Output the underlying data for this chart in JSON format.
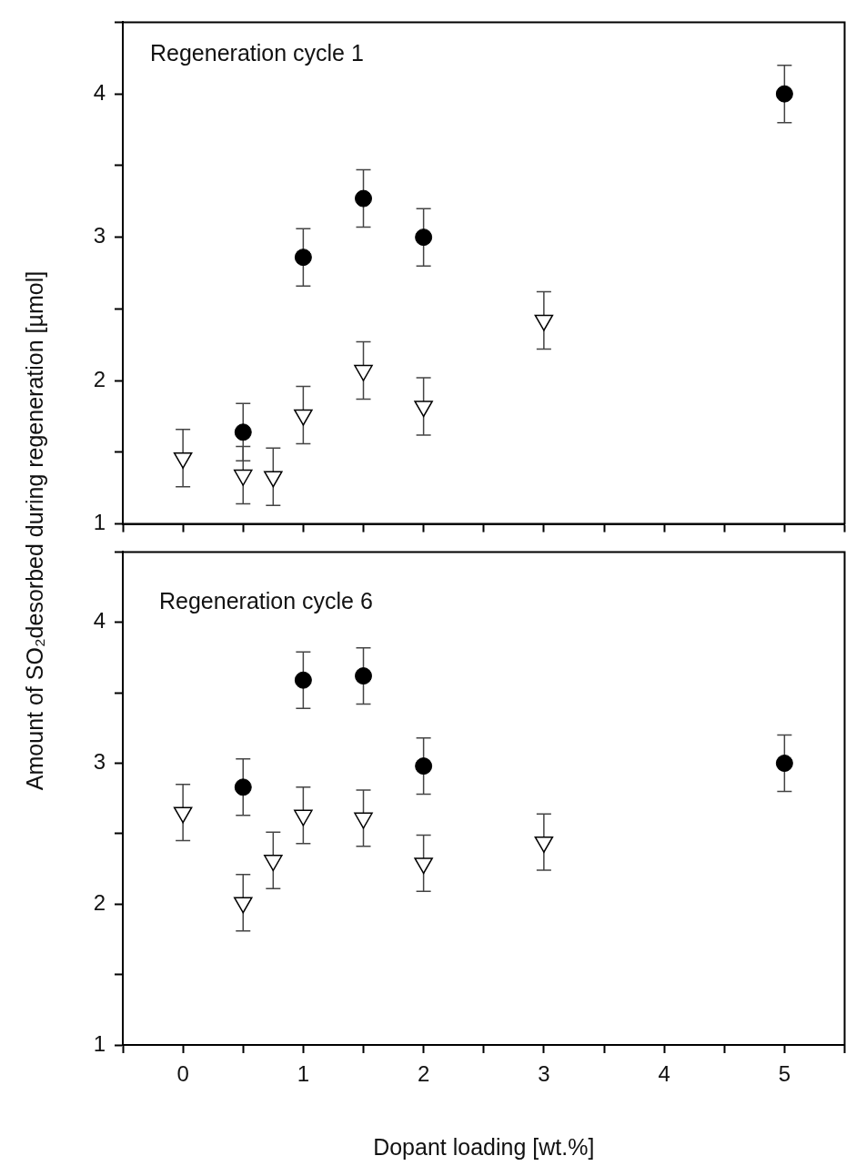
{
  "chart_data": [
    {
      "type": "scatter",
      "title": "Regeneration cycle 1",
      "ylabel": "Amount of SO₂desorbed during regeneration [µmol]",
      "xlim": [
        -0.5,
        5.5
      ],
      "ylim": [
        1,
        4.5
      ],
      "xticks": [
        {
          "value": -0.5,
          "label": null
        },
        {
          "value": 0,
          "label": null
        },
        {
          "value": 0.5,
          "label": null
        },
        {
          "value": 1,
          "label": null
        },
        {
          "value": 1.5,
          "label": null
        },
        {
          "value": 2,
          "label": null
        },
        {
          "value": 2.5,
          "label": null
        },
        {
          "value": 3,
          "label": null
        },
        {
          "value": 3.5,
          "label": null
        },
        {
          "value": 4,
          "label": null
        },
        {
          "value": 4.5,
          "label": null
        },
        {
          "value": 5,
          "label": null
        },
        {
          "value": 5.5,
          "label": null
        }
      ],
      "yticks": [
        1,
        {
          "value": 1.5,
          "label": null
        },
        2,
        {
          "value": 2.5,
          "label": null
        },
        3,
        {
          "value": 3.5,
          "label": null
        },
        4,
        {
          "value": 4.5,
          "label": null
        }
      ],
      "tick_labels": "y",
      "grid": false,
      "legend": false,
      "series": [
        {
          "color": "#000000",
          "marker": "circle",
          "x": [
            0.5,
            1,
            1.5,
            2,
            5
          ],
          "values": [
            1.64,
            2.86,
            3.27,
            3.0,
            4.0
          ],
          "errors": [
            0.2,
            0.2,
            0.2,
            0.2,
            0.2
          ]
        },
        {
          "color": "#000000",
          "marker": "triangle",
          "x": [
            0,
            0.5,
            0.75,
            1,
            1.5,
            2,
            3
          ],
          "values": [
            1.46,
            1.34,
            1.33,
            1.76,
            2.07,
            1.82,
            2.42
          ],
          "errors": [
            0.2,
            0.2,
            0.2,
            0.2,
            0.2,
            0.2,
            0.2
          ]
        }
      ]
    },
    {
      "type": "scatter",
      "title": "Regeneration cycle 6",
      "xlabel": "Dopant loading [wt.%]",
      "xlim": [
        -0.5,
        5.5
      ],
      "ylim": [
        1,
        4.5
      ],
      "xticks": [
        {
          "value": -0.5,
          "label": null
        },
        0,
        {
          "value": 0.5,
          "label": null
        },
        1,
        {
          "value": 1.5,
          "label": null
        },
        2,
        {
          "value": 2.5,
          "label": null
        },
        3,
        {
          "value": 3.5,
          "label": null
        },
        4,
        {
          "value": 4.5,
          "label": null
        },
        5,
        {
          "value": 5.5,
          "label": null
        }
      ],
      "yticks": [
        1,
        {
          "value": 1.5,
          "label": null
        },
        2,
        {
          "value": 2.5,
          "label": null
        },
        3,
        {
          "value": 3.5,
          "label": null
        },
        4,
        {
          "value": 4.5,
          "label": null
        }
      ],
      "grid": false,
      "legend": false,
      "series": [
        {
          "color": "#000000",
          "marker": "circle",
          "x": [
            0.5,
            1,
            1.5,
            2,
            5
          ],
          "values": [
            2.83,
            3.59,
            3.62,
            2.98,
            3.0
          ],
          "errors": [
            0.2,
            0.2,
            0.2,
            0.2,
            0.2
          ]
        },
        {
          "color": "#000000",
          "marker": "triangle",
          "x": [
            0,
            0.5,
            0.75,
            1,
            1.5,
            2,
            3
          ],
          "values": [
            2.65,
            2.01,
            2.31,
            2.63,
            2.61,
            2.29,
            2.44
          ],
          "errors": [
            0.2,
            0.2,
            0.2,
            0.2,
            0.2,
            0.2,
            0.2
          ]
        }
      ]
    }
  ]
}
